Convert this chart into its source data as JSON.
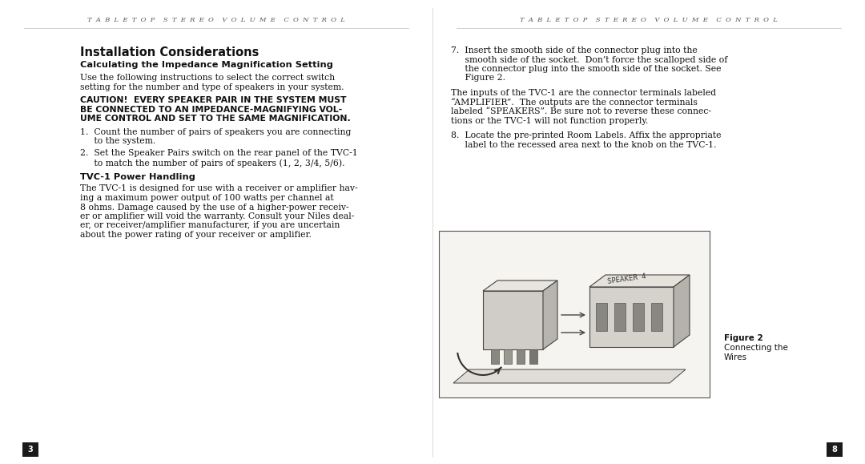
{
  "bg_color": "#ffffff",
  "left_header": "T  A  B  L  E  T  O  P    S  T  E  R  E  O    V  O  L  U  M  E    C  O  N  T  R  O  L",
  "right_header": "T  A  B  L  E  T  O  P    S  T  E  R  E  O    V  O  L  U  M  E    C  O  N  T  R  O  L",
  "left_page_num": "3",
  "right_page_num": "8",
  "left_title": "Installation Considerations",
  "left_subtitle1": "Calculating the Impedance Magnification Setting",
  "left_para1": [
    "Use the following instructions to select the correct switch",
    "setting for the number and type of speakers in your system."
  ],
  "left_caution": [
    "CAUTION!  EVERY SPEAKER PAIR IN THE SYSTEM MUST",
    "BE CONNECTED TO AN IMPEDANCE-MAGNIFYING VOL-",
    "UME CONTROL AND SET TO THE SAME MAGNIFICATION."
  ],
  "left_item1": [
    "1.  Count the number of pairs of speakers you are connecting",
    "     to the system."
  ],
  "left_item2": [
    "2.  Set the Speaker Pairs switch on the rear panel of the TVC-1",
    "     to match the number of pairs of speakers (1, 2, 3/4, 5/6)."
  ],
  "left_subtitle2": "TVC-1 Power Handling",
  "left_para2": [
    "The TVC-1 is designed for use with a receiver or amplifier hav-",
    "ing a maximum power output of 100 watts per channel at",
    "8 ohms. Damage caused by the use of a higher-power receiv-",
    "er or amplifier will void the warranty. Consult your Niles deal-",
    "er, or receiver/amplifier manufacturer, if you are uncertain",
    "about the power rating of your receiver or amplifier."
  ],
  "right_item7": [
    "7.  Insert the smooth side of the connector plug into the",
    "     smooth side of the socket.  Don’t force the scalloped side of",
    "     the connector plug into the smooth side of the socket. See",
    "     Figure 2."
  ],
  "right_para_amp": [
    "The inputs of the TVC-1 are the connector terminals labeled",
    "“AMPLIFIER”.  The outputs are the connector terminals",
    "labeled “SPEAKERS”. Be sure not to reverse these connec-",
    "tions or the TVC-1 will not function properly."
  ],
  "right_item8": [
    "8.  Locate the pre-printed Room Labels. Affix the appropriate",
    "     label to the recessed area next to the knob on the TVC-1."
  ],
  "fig_caption": "Figure 2\nConnecting the\nWires",
  "fig_speaker_label": "SPEAKER  4"
}
